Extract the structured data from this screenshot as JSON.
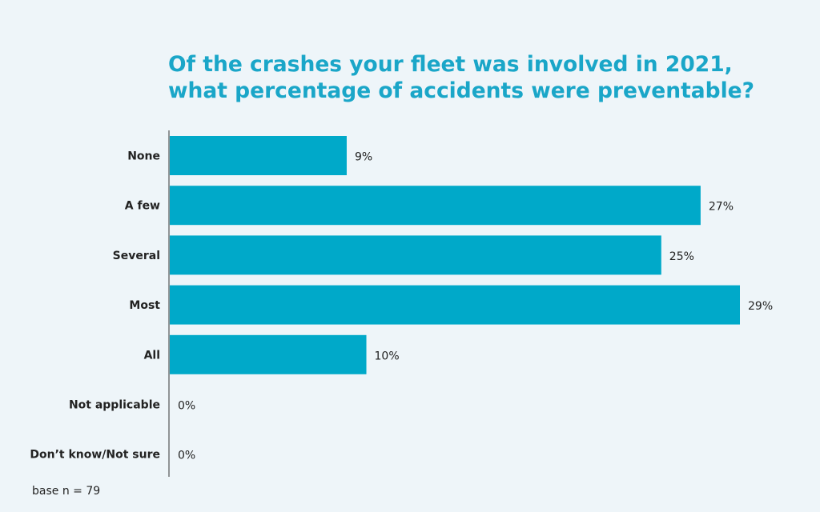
{
  "title_lines": [
    "Of the crashes your fleet was involved in 2021,",
    "what percentage of accidents were preventable?"
  ],
  "footnote": "base n = 79",
  "colors": {
    "bar": "#00a9c9",
    "title": "#1aa6c8",
    "axis": "#333333",
    "text": "#222222"
  },
  "chart_data": {
    "type": "bar",
    "orientation": "horizontal",
    "categories": [
      "None",
      "A few",
      "Several",
      "Most",
      "All",
      "Not applicable",
      "Don’t know/Not sure"
    ],
    "values": [
      9,
      27,
      25,
      29,
      10,
      0,
      0
    ],
    "value_labels": [
      "9%",
      "27%",
      "25%",
      "29%",
      "10%",
      "0%",
      "0%"
    ],
    "unit": "%",
    "xlim": [
      0,
      29
    ],
    "grid": false,
    "legend": "none"
  }
}
